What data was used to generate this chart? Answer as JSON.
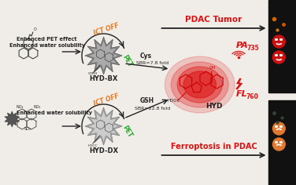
{
  "bg_color": "#f0ede8",
  "top_label": "PDAC Tumor",
  "bottom_label": "Ferroptosis in PDAC",
  "hyd_bx": "HYD-BX",
  "hyd_dx": "HYD-DX",
  "hyd": "HYD",
  "ict_off": "ICT OFF",
  "pet": "PET",
  "cys_line1": "Cys",
  "cys_line2": "SBR=7.8 fold",
  "gsh_line1": "GSH",
  "gsh_line2": "SBR=22.8 fold",
  "pa_text": "PA",
  "pa_sub": "735",
  "fl_text": "FL",
  "fl_sub": "760",
  "enhanced_pet": "Enhanced PET effect",
  "enhanced_water1": "Enhanced water solubility",
  "enhanced_water2": "Enhanced water solubility",
  "hooc": "HOOC",
  "red_color": "#dd1111",
  "orange_color": "#e87820",
  "green_color": "#22aa22",
  "dark": "#222222",
  "mid_gray": "#666666",
  "light_gray": "#999999"
}
